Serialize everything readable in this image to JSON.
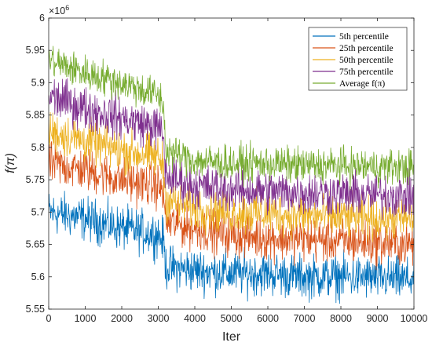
{
  "chart_data": {
    "type": "line",
    "title": "",
    "xlabel": "Iter",
    "ylabel": "f(π)",
    "y_exponent_label": "×10",
    "y_exponent_power": "6",
    "xlim": [
      0,
      10000
    ],
    "ylim": [
      5.55,
      6.0
    ],
    "x_ticks": [
      0,
      1000,
      2000,
      3000,
      4000,
      5000,
      6000,
      7000,
      8000,
      9000,
      10000
    ],
    "x_tick_labels": [
      "0",
      "1000",
      "2000",
      "3000",
      "4000",
      "5000",
      "6000",
      "7000",
      "8000",
      "9000",
      "10000"
    ],
    "y_ticks": [
      5.55,
      5.6,
      5.65,
      5.7,
      5.75,
      5.8,
      5.85,
      5.9,
      5.95,
      6.0
    ],
    "y_tick_labels": [
      "5.55",
      "5.6",
      "5.65",
      "5.7",
      "5.75",
      "5.8",
      "5.85",
      "5.9",
      "5.95",
      "6"
    ],
    "grid": false,
    "legend_position": "top-right",
    "x": [
      0,
      1000,
      2000,
      3000,
      3150,
      3200,
      4000,
      5000,
      6000,
      7000,
      8000,
      9000,
      10000
    ],
    "series": [
      {
        "name": "5th percentile",
        "color": "#0072BD",
        "noise": 0.022,
        "values": [
          5.7,
          5.69,
          5.675,
          5.665,
          5.655,
          5.615,
          5.61,
          5.605,
          5.605,
          5.6,
          5.6,
          5.598,
          5.595
        ]
      },
      {
        "name": "25th percentile",
        "color": "#D95319",
        "noise": 0.022,
        "values": [
          5.775,
          5.765,
          5.75,
          5.74,
          5.728,
          5.685,
          5.675,
          5.665,
          5.66,
          5.658,
          5.655,
          5.652,
          5.65
        ]
      },
      {
        "name": "50th percentile",
        "color": "#EDB120",
        "noise": 0.022,
        "values": [
          5.825,
          5.81,
          5.795,
          5.785,
          5.772,
          5.72,
          5.705,
          5.7,
          5.698,
          5.695,
          5.692,
          5.69,
          5.69
        ]
      },
      {
        "name": "75th percentile",
        "color": "#7E2F8E",
        "noise": 0.022,
        "values": [
          5.88,
          5.86,
          5.845,
          5.83,
          5.815,
          5.755,
          5.74,
          5.735,
          5.732,
          5.73,
          5.728,
          5.726,
          5.725
        ]
      },
      {
        "name": "Average f(π)",
        "color": "#77AC30",
        "noise": 0.018,
        "values": [
          5.935,
          5.915,
          5.9,
          5.88,
          5.865,
          5.795,
          5.78,
          5.775,
          5.775,
          5.772,
          5.772,
          5.77,
          5.77
        ]
      }
    ]
  }
}
